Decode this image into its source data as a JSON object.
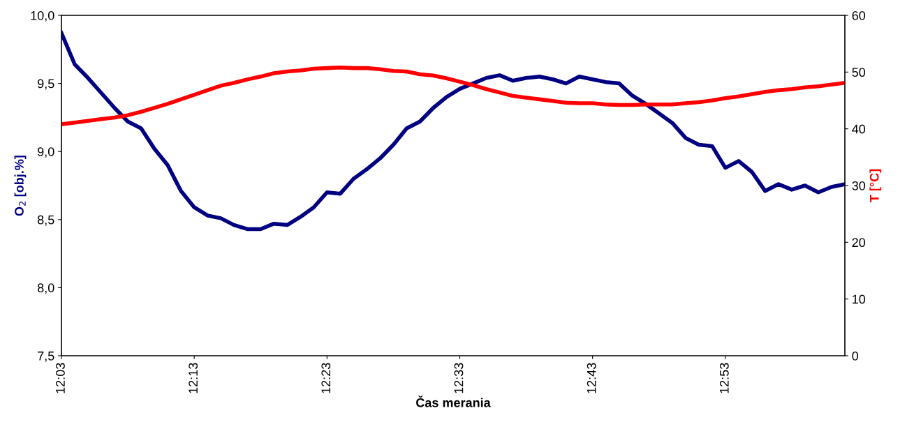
{
  "chart_data": {
    "type": "line",
    "categories": [
      "12:03",
      null,
      null,
      null,
      null,
      null,
      null,
      null,
      null,
      null,
      "12:13",
      null,
      null,
      null,
      null,
      null,
      null,
      null,
      null,
      null,
      "12:23",
      null,
      null,
      null,
      null,
      null,
      null,
      null,
      null,
      null,
      "12:33",
      null,
      null,
      null,
      null,
      null,
      null,
      null,
      null,
      null,
      "12:43",
      null,
      null,
      null,
      null,
      null,
      null,
      null,
      null,
      null,
      "12:53",
      null,
      null,
      null,
      null,
      null,
      null,
      null,
      null,
      null
    ],
    "xlabel": "Čas merania",
    "ylabel": "O$_{2}$ [obj.%]",
    "y2label": "T [°C]",
    "ylim": [
      7.5,
      10.0
    ],
    "yticks": [
      {
        "value": 7.5,
        "label": "7,5"
      },
      {
        "value": 8.0,
        "label": "8,0"
      },
      {
        "value": 8.5,
        "label": "8,5"
      },
      {
        "value": 9.0,
        "label": "9,0"
      },
      {
        "value": 9.5,
        "label": "9,5"
      },
      {
        "value": 10.0,
        "label": "10,0"
      }
    ],
    "y2lim": [
      0,
      60
    ],
    "y2ticks": [
      0,
      10,
      20,
      30,
      40,
      50,
      60
    ],
    "grid": false,
    "legend": false,
    "marker": "none",
    "line_style": "solid",
    "series": [
      {
        "color": "#000080",
        "values": [
          9.87,
          9.64,
          9.54,
          9.43,
          9.32,
          9.22,
          9.17,
          9.02,
          8.9,
          8.71,
          8.59,
          8.53,
          8.51,
          8.46,
          8.43,
          8.43,
          8.47,
          8.46,
          8.52,
          8.59,
          8.7,
          8.69,
          8.8,
          8.87,
          8.95,
          9.05,
          9.17,
          9.22,
          9.32,
          9.4,
          9.46,
          9.5,
          9.54,
          9.56,
          9.52,
          9.54,
          9.55,
          9.53,
          9.5,
          9.55,
          9.53,
          9.51,
          9.5,
          9.41,
          9.35,
          9.28,
          9.21,
          9.1,
          9.05,
          9.04,
          8.88,
          8.93,
          8.85,
          8.71,
          8.76,
          8.72,
          8.75,
          8.7,
          8.74,
          8.76
        ]
      },
      {
        "color": "#ff0000",
        "axis": "y2",
        "values": [
          40.8,
          41.1,
          41.4,
          41.7,
          42.0,
          42.4,
          43.0,
          43.7,
          44.4,
          45.2,
          46.0,
          46.8,
          47.6,
          48.1,
          48.7,
          49.2,
          49.8,
          50.1,
          50.3,
          50.6,
          50.7,
          50.8,
          50.7,
          50.7,
          50.5,
          50.2,
          50.1,
          49.6,
          49.4,
          48.9,
          48.3,
          47.7,
          47.0,
          46.4,
          45.8,
          45.5,
          45.2,
          44.9,
          44.6,
          44.5,
          44.5,
          44.3,
          44.2,
          44.2,
          44.3,
          44.3,
          44.3,
          44.5,
          44.7,
          45.0,
          45.4,
          45.7,
          46.1,
          46.5,
          46.8,
          47.0,
          47.3,
          47.5,
          47.8,
          48.1
        ]
      }
    ]
  }
}
